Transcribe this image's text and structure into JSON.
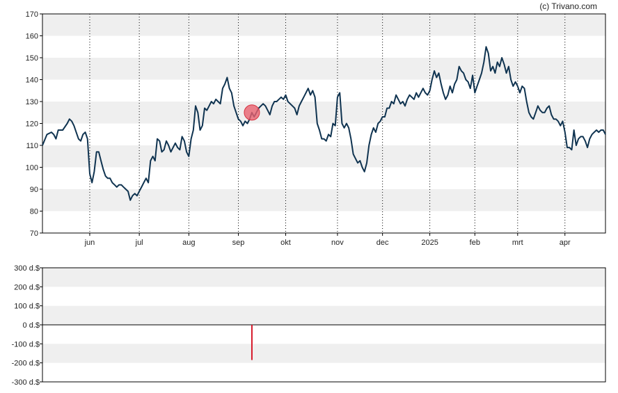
{
  "copyright": "(c) Trivano.com",
  "colors": {
    "band": "#efefef",
    "price_line": "#0f3350",
    "marker_fill": "#e8626f",
    "marker_stroke": "#d6303f",
    "bar": "#d6182a",
    "axis": "#000000",
    "grid": "#000000"
  },
  "chart_data": [
    {
      "type": "line",
      "title": "",
      "xlabel": "",
      "ylabel": "",
      "ylim": [
        70,
        170
      ],
      "y_ticks": [
        "70",
        "80",
        "90",
        "100",
        "110",
        "120",
        "130",
        "140",
        "150",
        "160",
        "170"
      ],
      "x_ticks": [
        "jun",
        "jul",
        "aug",
        "sep",
        "okt",
        "nov",
        "dec",
        "2025",
        "feb",
        "mrt",
        "apr"
      ],
      "x_tick_positions": [
        21,
        43,
        65,
        87,
        108,
        131,
        151,
        172,
        192,
        211,
        232
      ],
      "x_range": [
        0,
        250
      ],
      "grid": true,
      "series": [
        {
          "values": [
            [
              0,
              110
            ],
            [
              2,
              115
            ],
            [
              4,
              116
            ],
            [
              5,
              115
            ],
            [
              6,
              113
            ],
            [
              7,
              117
            ],
            [
              9,
              117
            ],
            [
              11,
              120
            ],
            [
              12,
              122
            ],
            [
              13,
              121
            ],
            [
              14,
              119
            ],
            [
              15,
              116
            ],
            [
              16,
              113
            ],
            [
              17,
              112
            ],
            [
              18,
              115
            ],
            [
              19,
              116
            ],
            [
              20,
              113
            ],
            [
              21,
              97
            ],
            [
              22,
              93
            ],
            [
              23,
              98
            ],
            [
              24,
              107
            ],
            [
              25,
              107
            ],
            [
              26,
              103
            ],
            [
              27,
              99
            ],
            [
              28,
              96
            ],
            [
              29,
              95
            ],
            [
              30,
              95
            ],
            [
              31,
              93
            ],
            [
              32,
              92
            ],
            [
              33,
              91
            ],
            [
              34,
              92
            ],
            [
              35,
              92
            ],
            [
              36,
              91
            ],
            [
              37,
              90
            ],
            [
              38,
              89
            ],
            [
              39,
              85
            ],
            [
              40,
              87
            ],
            [
              41,
              88
            ],
            [
              42,
              87
            ],
            [
              43,
              89
            ],
            [
              44,
              91
            ],
            [
              45,
              93
            ],
            [
              46,
              95
            ],
            [
              47,
              93
            ],
            [
              48,
              103
            ],
            [
              49,
              105
            ],
            [
              50,
              103
            ],
            [
              51,
              113
            ],
            [
              52,
              112
            ],
            [
              53,
              107
            ],
            [
              54,
              108
            ],
            [
              55,
              112
            ],
            [
              56,
              110
            ],
            [
              57,
              107
            ],
            [
              58,
              109
            ],
            [
              59,
              111
            ],
            [
              60,
              109
            ],
            [
              61,
              108
            ],
            [
              62,
              114
            ],
            [
              63,
              112
            ],
            [
              64,
              107
            ],
            [
              65,
              105
            ],
            [
              66,
              113
            ],
            [
              67,
              117
            ],
            [
              68,
              128
            ],
            [
              69,
              125
            ],
            [
              70,
              117
            ],
            [
              71,
              119
            ],
            [
              72,
              127
            ],
            [
              73,
              126
            ],
            [
              74,
              128
            ],
            [
              75,
              130
            ],
            [
              76,
              129
            ],
            [
              77,
              131
            ],
            [
              78,
              130
            ],
            [
              79,
              129
            ],
            [
              80,
              136
            ],
            [
              81,
              138
            ],
            [
              82,
              141
            ],
            [
              83,
              136
            ],
            [
              84,
              134
            ],
            [
              85,
              128
            ],
            [
              86,
              125
            ],
            [
              87,
              122
            ],
            [
              88,
              121
            ],
            [
              89,
              119
            ],
            [
              90,
              121
            ],
            [
              91,
              120
            ],
            [
              92,
              122
            ],
            [
              93,
              125
            ],
            [
              94,
              123
            ],
            [
              95,
              125
            ],
            [
              96,
              127
            ],
            [
              97,
              128
            ],
            [
              98,
              129
            ],
            [
              99,
              128
            ],
            [
              100,
              126
            ],
            [
              101,
              124
            ],
            [
              102,
              128
            ],
            [
              103,
              130
            ],
            [
              104,
              130
            ],
            [
              105,
              131
            ],
            [
              106,
              132
            ],
            [
              107,
              131
            ],
            [
              108,
              133
            ],
            [
              109,
              130
            ],
            [
              110,
              129
            ],
            [
              111,
              128
            ],
            [
              112,
              127
            ],
            [
              113,
              124
            ],
            [
              114,
              128
            ],
            [
              115,
              130
            ],
            [
              116,
              132
            ],
            [
              117,
              134
            ],
            [
              118,
              136
            ],
            [
              119,
              133
            ],
            [
              120,
              135
            ],
            [
              121,
              132
            ],
            [
              122,
              120
            ],
            [
              123,
              117
            ],
            [
              124,
              113
            ],
            [
              125,
              113
            ],
            [
              126,
              112
            ],
            [
              127,
              115
            ],
            [
              128,
              114
            ],
            [
              129,
              120
            ],
            [
              130,
              119
            ],
            [
              131,
              132
            ],
            [
              132,
              134
            ],
            [
              133,
              120
            ],
            [
              134,
              118
            ],
            [
              135,
              120
            ],
            [
              136,
              118
            ],
            [
              137,
              113
            ],
            [
              138,
              106
            ],
            [
              139,
              104
            ],
            [
              140,
              102
            ],
            [
              141,
              103
            ],
            [
              142,
              100
            ],
            [
              143,
              98
            ],
            [
              144,
              102
            ],
            [
              145,
              110
            ],
            [
              146,
              115
            ],
            [
              147,
              118
            ],
            [
              148,
              116
            ],
            [
              149,
              120
            ],
            [
              150,
              121
            ],
            [
              151,
              123
            ],
            [
              152,
              123
            ],
            [
              153,
              127
            ],
            [
              154,
              127
            ],
            [
              155,
              130
            ],
            [
              156,
              129
            ],
            [
              157,
              133
            ],
            [
              158,
              131
            ],
            [
              159,
              129
            ],
            [
              160,
              130
            ],
            [
              161,
              128
            ],
            [
              162,
              131
            ],
            [
              163,
              133
            ],
            [
              164,
              132
            ],
            [
              165,
              131
            ],
            [
              166,
              134
            ],
            [
              167,
              132
            ],
            [
              168,
              134
            ],
            [
              169,
              136
            ],
            [
              170,
              134
            ],
            [
              171,
              133
            ],
            [
              172,
              135
            ],
            [
              173,
              140
            ],
            [
              174,
              144
            ],
            [
              175,
              141
            ],
            [
              176,
              143
            ],
            [
              177,
              138
            ],
            [
              178,
              134
            ],
            [
              179,
              131
            ],
            [
              180,
              133
            ],
            [
              181,
              137
            ],
            [
              182,
              134
            ],
            [
              183,
              138
            ],
            [
              184,
              140
            ],
            [
              185,
              146
            ],
            [
              186,
              144
            ],
            [
              187,
              143
            ],
            [
              188,
              140
            ],
            [
              189,
              139
            ],
            [
              190,
              136
            ],
            [
              191,
              142
            ],
            [
              192,
              134
            ],
            [
              193,
              137
            ],
            [
              194,
              140
            ],
            [
              195,
              143
            ],
            [
              196,
              148
            ],
            [
              197,
              155
            ],
            [
              198,
              152
            ],
            [
              199,
              144
            ],
            [
              200,
              146
            ],
            [
              201,
              143
            ],
            [
              202,
              148
            ],
            [
              203,
              146
            ],
            [
              204,
              150
            ],
            [
              205,
              147
            ],
            [
              206,
              143
            ],
            [
              207,
              146
            ],
            [
              208,
              140
            ],
            [
              209,
              137
            ],
            [
              210,
              139
            ],
            [
              211,
              137
            ],
            [
              212,
              134
            ],
            [
              213,
              137
            ],
            [
              214,
              136
            ],
            [
              215,
              130
            ],
            [
              216,
              125
            ],
            [
              217,
              123
            ],
            [
              218,
              122
            ],
            [
              219,
              125
            ],
            [
              220,
              128
            ],
            [
              221,
              126
            ],
            [
              222,
              125
            ],
            [
              223,
              125
            ],
            [
              224,
              127
            ],
            [
              225,
              128
            ],
            [
              226,
              124
            ],
            [
              227,
              122
            ],
            [
              228,
              122
            ],
            [
              229,
              121
            ],
            [
              230,
              119
            ],
            [
              231,
              121
            ],
            [
              232,
              116
            ],
            [
              233,
              109
            ],
            [
              234,
              109
            ],
            [
              235,
              108
            ],
            [
              236,
              117
            ],
            [
              237,
              110
            ],
            [
              238,
              113
            ],
            [
              239,
              114
            ],
            [
              240,
              114
            ],
            [
              241,
              112
            ],
            [
              242,
              109
            ],
            [
              243,
              113
            ],
            [
              244,
              115
            ],
            [
              245,
              116
            ],
            [
              246,
              117
            ],
            [
              247,
              116
            ],
            [
              248,
              117
            ],
            [
              249,
              117
            ],
            [
              250,
              115
            ]
          ]
        }
      ],
      "highlight_point": [
        93,
        125
      ]
    },
    {
      "type": "bar",
      "title": "",
      "xlabel": "",
      "ylabel": "",
      "ylim": [
        -300,
        300
      ],
      "y_ticks": [
        "300 d.$",
        "200 d.$",
        "100 d.$",
        "0 d.$",
        "-100 d.$",
        "-200 d.$",
        "-300 d.$"
      ],
      "x_range": [
        0,
        250
      ],
      "grid": true,
      "bars": [
        [
          93,
          -185
        ]
      ]
    }
  ]
}
